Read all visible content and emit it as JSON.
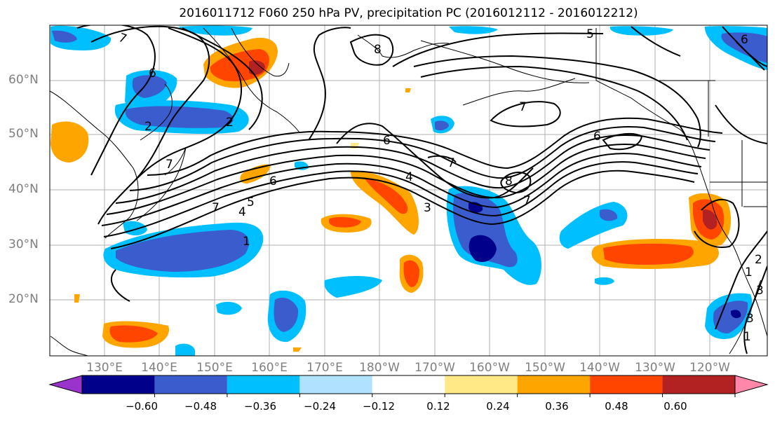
{
  "title": "2016011712 F060 250 hPa PV, precipitation PC (2016012112 - 2016012212)",
  "lat_labels": [
    "60°N",
    "50°N",
    "40°N",
    "30°N",
    "20°N"
  ],
  "lon_labels": [
    "130°E",
    "140°E",
    "150°E",
    "160°E",
    "170°E",
    "180°W",
    "170°W",
    "160°W",
    "150°W",
    "140°W",
    "130°W",
    "120°W"
  ],
  "colorbar": {
    "ticks": [
      "−0.60",
      "−0.48",
      "−0.36",
      "−0.24",
      "−0.12",
      "0.12",
      "0.24",
      "0.36",
      "0.48",
      "0.60"
    ],
    "colors": [
      "#9a33cc",
      "#00008b",
      "#3a5ccc",
      "#00bfff",
      "#b0e2ff",
      "#ffffff",
      "#ffe885",
      "#ffa500",
      "#ff4500",
      "#b22222",
      "#ff88aa"
    ]
  },
  "contour_labels": [
    "7",
    "6",
    "2",
    "2",
    "7",
    "8",
    "5",
    "6",
    "7",
    "6",
    "6",
    "7",
    "8",
    "4",
    "3",
    "6",
    "7",
    "1",
    "5",
    "4",
    "7",
    "3",
    "1",
    "1",
    "2",
    "3"
  ]
}
